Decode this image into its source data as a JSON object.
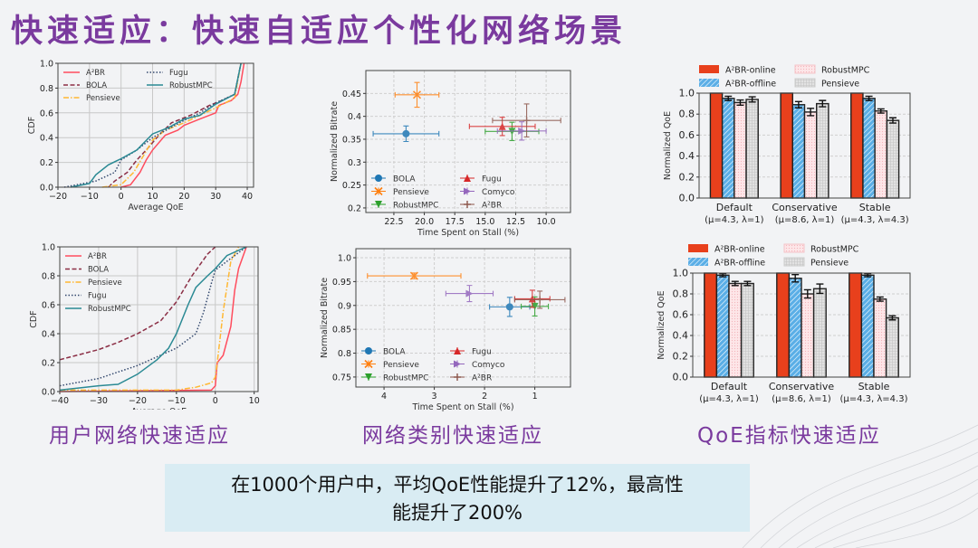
{
  "title": "快速适应：快速自适应个性化网络场景",
  "captions": [
    "用户网络快速适应",
    "网络类别快速适应",
    "QoE指标快速适应"
  ],
  "summary": [
    "在1000个用户中，平均QoE性能提升了12%，最高性",
    "能提升了200%"
  ],
  "chart_data": [
    {
      "id": "cdf-top",
      "type": "line",
      "xlabel": "Average QoE",
      "ylabel": "CDF",
      "xlim": [
        -20,
        42
      ],
      "ylim": [
        0,
        1
      ],
      "xticks": [
        -20,
        -10,
        0,
        10,
        20,
        30,
        40
      ],
      "yticks": [
        0,
        0.2,
        0.4,
        0.6,
        0.8,
        1.0
      ],
      "grid": true,
      "legend": "top-left",
      "series": [
        {
          "name": "A²BR",
          "color": "#ff4d5e",
          "dash": "solid",
          "points": [
            [
              0,
              0
            ],
            [
              3,
              0.02
            ],
            [
              6,
              0.12
            ],
            [
              8,
              0.22
            ],
            [
              10,
              0.3
            ],
            [
              14,
              0.42
            ],
            [
              18,
              0.46
            ],
            [
              20,
              0.5
            ],
            [
              25,
              0.55
            ],
            [
              30,
              0.6
            ],
            [
              31,
              0.66
            ],
            [
              35,
              0.7
            ],
            [
              37,
              0.75
            ],
            [
              38,
              0.85
            ],
            [
              39,
              1
            ]
          ]
        },
        {
          "name": "BOLA",
          "color": "#8b2e45",
          "dash": "dashed",
          "points": [
            [
              -4,
              0
            ],
            [
              -2,
              0.05
            ],
            [
              2,
              0.12
            ],
            [
              5,
              0.22
            ],
            [
              8,
              0.3
            ],
            [
              12,
              0.42
            ],
            [
              16,
              0.52
            ],
            [
              22,
              0.58
            ],
            [
              28,
              0.66
            ],
            [
              32,
              0.7
            ],
            [
              36,
              0.75
            ],
            [
              38,
              1
            ]
          ]
        },
        {
          "name": "Pensieve",
          "color": "#ffb833",
          "dash": "dashdot",
          "points": [
            [
              -6,
              0
            ],
            [
              0,
              0.02
            ],
            [
              4,
              0.12
            ],
            [
              7,
              0.25
            ],
            [
              10,
              0.38
            ],
            [
              14,
              0.46
            ],
            [
              20,
              0.52
            ],
            [
              25,
              0.58
            ],
            [
              30,
              0.64
            ],
            [
              36,
              0.72
            ],
            [
              38,
              1
            ]
          ]
        },
        {
          "name": "Fugu",
          "color": "#34496e",
          "dash": "dotted",
          "points": [
            [
              -18,
              0
            ],
            [
              -8,
              0.05
            ],
            [
              -2,
              0.12
            ],
            [
              0,
              0.22
            ],
            [
              5,
              0.3
            ],
            [
              10,
              0.4
            ],
            [
              15,
              0.47
            ],
            [
              20,
              0.54
            ],
            [
              25,
              0.6
            ],
            [
              30,
              0.68
            ],
            [
              36,
              0.75
            ],
            [
              38,
              1
            ]
          ]
        },
        {
          "name": "RobustMPC",
          "color": "#2b8a94",
          "dash": "solid",
          "points": [
            [
              -16,
              0
            ],
            [
              -10,
              0.03
            ],
            [
              -8,
              0.1
            ],
            [
              -4,
              0.18
            ],
            [
              0,
              0.23
            ],
            [
              5,
              0.3
            ],
            [
              10,
              0.43
            ],
            [
              15,
              0.48
            ],
            [
              20,
              0.55
            ],
            [
              25,
              0.58
            ],
            [
              30,
              0.67
            ],
            [
              36,
              0.75
            ],
            [
              38,
              1
            ]
          ]
        }
      ]
    },
    {
      "id": "scatter-top",
      "type": "scatter",
      "xlabel": "Time Spent on Stall (%)",
      "ylabel": "Normalized Bitrate",
      "xlim": [
        24.8,
        8.0
      ],
      "ylim": [
        0.19,
        0.5
      ],
      "xticks": [
        22.5,
        20.0,
        17.5,
        15.0,
        12.5,
        10.0
      ],
      "yticks": [
        0.2,
        0.25,
        0.3,
        0.35,
        0.4,
        0.45
      ],
      "x_inverted": true,
      "grid": true,
      "legend": "bottom-left",
      "series": [
        {
          "name": "BOLA",
          "color": "#1f77b4",
          "marker": "circle",
          "x": 21.5,
          "y": 0.362,
          "xerr": 2.7,
          "yerr": 0.017
        },
        {
          "name": "Pensieve",
          "color": "#ff7f0e",
          "marker": "x",
          "x": 20.6,
          "y": 0.447,
          "xerr": 1.8,
          "yerr": 0.027
        },
        {
          "name": "RobustMPC",
          "color": "#2ca02c",
          "marker": "triangle-down",
          "x": 12.8,
          "y": 0.367,
          "xerr": 2.2,
          "yerr": 0.02
        },
        {
          "name": "Fugu",
          "color": "#d62728",
          "marker": "triangle-up",
          "x": 13.6,
          "y": 0.378,
          "xerr": 2.7,
          "yerr": 0.02
        },
        {
          "name": "Comyco",
          "color": "#9467bd",
          "marker": "triangle-right",
          "x": 12.0,
          "y": 0.368,
          "xerr": 2.0,
          "yerr": 0.02
        },
        {
          "name": "A²BR",
          "color": "#8c564b",
          "marker": "plus",
          "x": 11.6,
          "y": 0.391,
          "xerr": 2.8,
          "yerr": 0.036
        }
      ]
    },
    {
      "id": "bar-top",
      "type": "bar",
      "ylabel": "Normalized QoE",
      "ylim": [
        0,
        1
      ],
      "yticks": [
        0,
        0.2,
        0.4,
        0.6,
        0.8,
        1.0
      ],
      "grid": true,
      "legend": "top",
      "categories": [
        "Default\n(μ=4.3, λ=1)",
        "Conservative\n(μ=8.6, λ=1)",
        "Stable\n(μ=4.3, λ=4.3)"
      ],
      "series": [
        {
          "name": "A²BR-online",
          "color": "#e8401c",
          "values": [
            1.0,
            1.0,
            1.0
          ],
          "err": [
            0,
            0,
            0
          ]
        },
        {
          "name": "A²BR-offline",
          "color": "#5aaee6",
          "values": [
            0.95,
            0.89,
            0.95
          ],
          "err": [
            0.02,
            0.03,
            0.02
          ]
        },
        {
          "name": "RobustMPC",
          "color": "#fbd9dc",
          "values": [
            0.91,
            0.82,
            0.83
          ],
          "err": [
            0.025,
            0.035,
            0.02
          ]
        },
        {
          "name": "Pensieve",
          "color": "#d6d6d6",
          "values": [
            0.94,
            0.9,
            0.74
          ],
          "err": [
            0.025,
            0.03,
            0.025
          ]
        }
      ]
    },
    {
      "id": "cdf-bottom",
      "type": "line",
      "xlabel": "Average QoE",
      "ylabel": "CDF",
      "xlim": [
        -40,
        11
      ],
      "ylim": [
        0,
        1
      ],
      "xticks": [
        -40,
        -30,
        -20,
        -10,
        0,
        10
      ],
      "yticks": [
        0,
        0.2,
        0.4,
        0.6,
        0.8,
        1.0
      ],
      "grid": true,
      "legend": "top-left",
      "series": [
        {
          "name": "A²BR",
          "color": "#ff4d5e",
          "dash": "solid",
          "points": [
            [
              -40,
              0
            ],
            [
              -1,
              0.01
            ],
            [
              0,
              0.04
            ],
            [
              0.5,
              0.2
            ],
            [
              2,
              0.25
            ],
            [
              4,
              0.45
            ],
            [
              5,
              0.7
            ],
            [
              6,
              0.85
            ],
            [
              8,
              1
            ]
          ]
        },
        {
          "name": "BOLA",
          "color": "#8b2e45",
          "dash": "dashed",
          "points": [
            [
              -40,
              0.22
            ],
            [
              -30,
              0.29
            ],
            [
              -25,
              0.34
            ],
            [
              -20,
              0.4
            ],
            [
              -14,
              0.49
            ],
            [
              -10,
              0.62
            ],
            [
              -6,
              0.8
            ],
            [
              -2,
              0.95
            ],
            [
              0,
              1
            ]
          ]
        },
        {
          "name": "Pensieve",
          "color": "#ffb833",
          "dash": "dashdot",
          "points": [
            [
              -40,
              0.01
            ],
            [
              -10,
              0.01
            ],
            [
              -5,
              0.03
            ],
            [
              -1,
              0.06
            ],
            [
              0,
              0.1
            ],
            [
              0.5,
              0.2
            ],
            [
              2,
              0.55
            ],
            [
              4,
              0.9
            ],
            [
              6,
              1
            ]
          ]
        },
        {
          "name": "Fugu",
          "color": "#34496e",
          "dash": "dotted",
          "points": [
            [
              -40,
              0.04
            ],
            [
              -30,
              0.09
            ],
            [
              -20,
              0.18
            ],
            [
              -15,
              0.24
            ],
            [
              -10,
              0.3
            ],
            [
              -5,
              0.4
            ],
            [
              -3,
              0.55
            ],
            [
              -1,
              0.75
            ],
            [
              0,
              0.84
            ],
            [
              3,
              0.9
            ],
            [
              8,
              1
            ]
          ]
        },
        {
          "name": "RobustMPC",
          "color": "#2b8a94",
          "dash": "solid",
          "points": [
            [
              -40,
              0.01
            ],
            [
              -30,
              0.04
            ],
            [
              -25,
              0.05
            ],
            [
              -20,
              0.12
            ],
            [
              -15,
              0.22
            ],
            [
              -12,
              0.3
            ],
            [
              -10,
              0.4
            ],
            [
              -7,
              0.6
            ],
            [
              -5,
              0.72
            ],
            [
              -2,
              0.8
            ],
            [
              0,
              0.85
            ],
            [
              3,
              0.94
            ],
            [
              8,
              1
            ]
          ]
        }
      ]
    },
    {
      "id": "scatter-bottom",
      "type": "scatter",
      "xlabel": "Time Spent on Stall (%)",
      "ylabel": "Normalized Bitrate",
      "xlim": [
        4.56,
        0.29
      ],
      "ylim": [
        0.729,
        1.019
      ],
      "xticks": [
        4,
        3,
        2,
        1
      ],
      "yticks": [
        0.75,
        0.8,
        0.85,
        0.9,
        0.95,
        1.0
      ],
      "x_inverted": true,
      "grid": true,
      "legend": "bottom-left",
      "series": [
        {
          "name": "BOLA",
          "color": "#1f77b4",
          "marker": "circle",
          "x": 1.5,
          "y": 0.897,
          "xerr": 0.4,
          "yerr": 0.02
        },
        {
          "name": "Pensieve",
          "color": "#ff7f0e",
          "marker": "x",
          "x": 3.4,
          "y": 0.962,
          "xerr": 0.93,
          "yerr": 0.006
        },
        {
          "name": "RobustMPC",
          "color": "#2ca02c",
          "marker": "triangle-down",
          "x": 1.0,
          "y": 0.898,
          "xerr": 0.27,
          "yerr": 0.02
        },
        {
          "name": "Fugu",
          "color": "#d62728",
          "marker": "triangle-up",
          "x": 1.05,
          "y": 0.914,
          "xerr": 0.35,
          "yerr": 0.018
        },
        {
          "name": "Comyco",
          "color": "#9467bd",
          "marker": "triangle-right",
          "x": 2.3,
          "y": 0.925,
          "xerr": 0.47,
          "yerr": 0.017
        },
        {
          "name": "A²BR",
          "color": "#8c564b",
          "marker": "plus",
          "x": 0.9,
          "y": 0.912,
          "xerr": 0.5,
          "yerr": 0.018
        }
      ]
    },
    {
      "id": "bar-bottom",
      "type": "bar",
      "ylabel": "Normalized QoE",
      "ylim": [
        0,
        1
      ],
      "yticks": [
        0,
        0.2,
        0.4,
        0.6,
        0.8,
        1.0
      ],
      "grid": true,
      "legend": "top",
      "categories": [
        "Default\n(μ=4.3, λ=1)",
        "Conservative\n(μ=8.6, λ=1)",
        "Stable\n(μ=4.3, λ=4.3)"
      ],
      "series": [
        {
          "name": "A²BR-online",
          "color": "#e8401c",
          "values": [
            1.0,
            1.0,
            1.0
          ],
          "err": [
            0,
            0,
            0
          ]
        },
        {
          "name": "A²BR-offline",
          "color": "#5aaee6",
          "values": [
            0.98,
            0.95,
            0.98
          ],
          "err": [
            0.015,
            0.035,
            0.015
          ]
        },
        {
          "name": "RobustMPC",
          "color": "#fbd9dc",
          "values": [
            0.9,
            0.8,
            0.75
          ],
          "err": [
            0.02,
            0.04,
            0.02
          ]
        },
        {
          "name": "Pensieve",
          "color": "#d6d6d6",
          "values": [
            0.9,
            0.85,
            0.57
          ],
          "err": [
            0.02,
            0.045,
            0.02
          ]
        }
      ]
    }
  ]
}
